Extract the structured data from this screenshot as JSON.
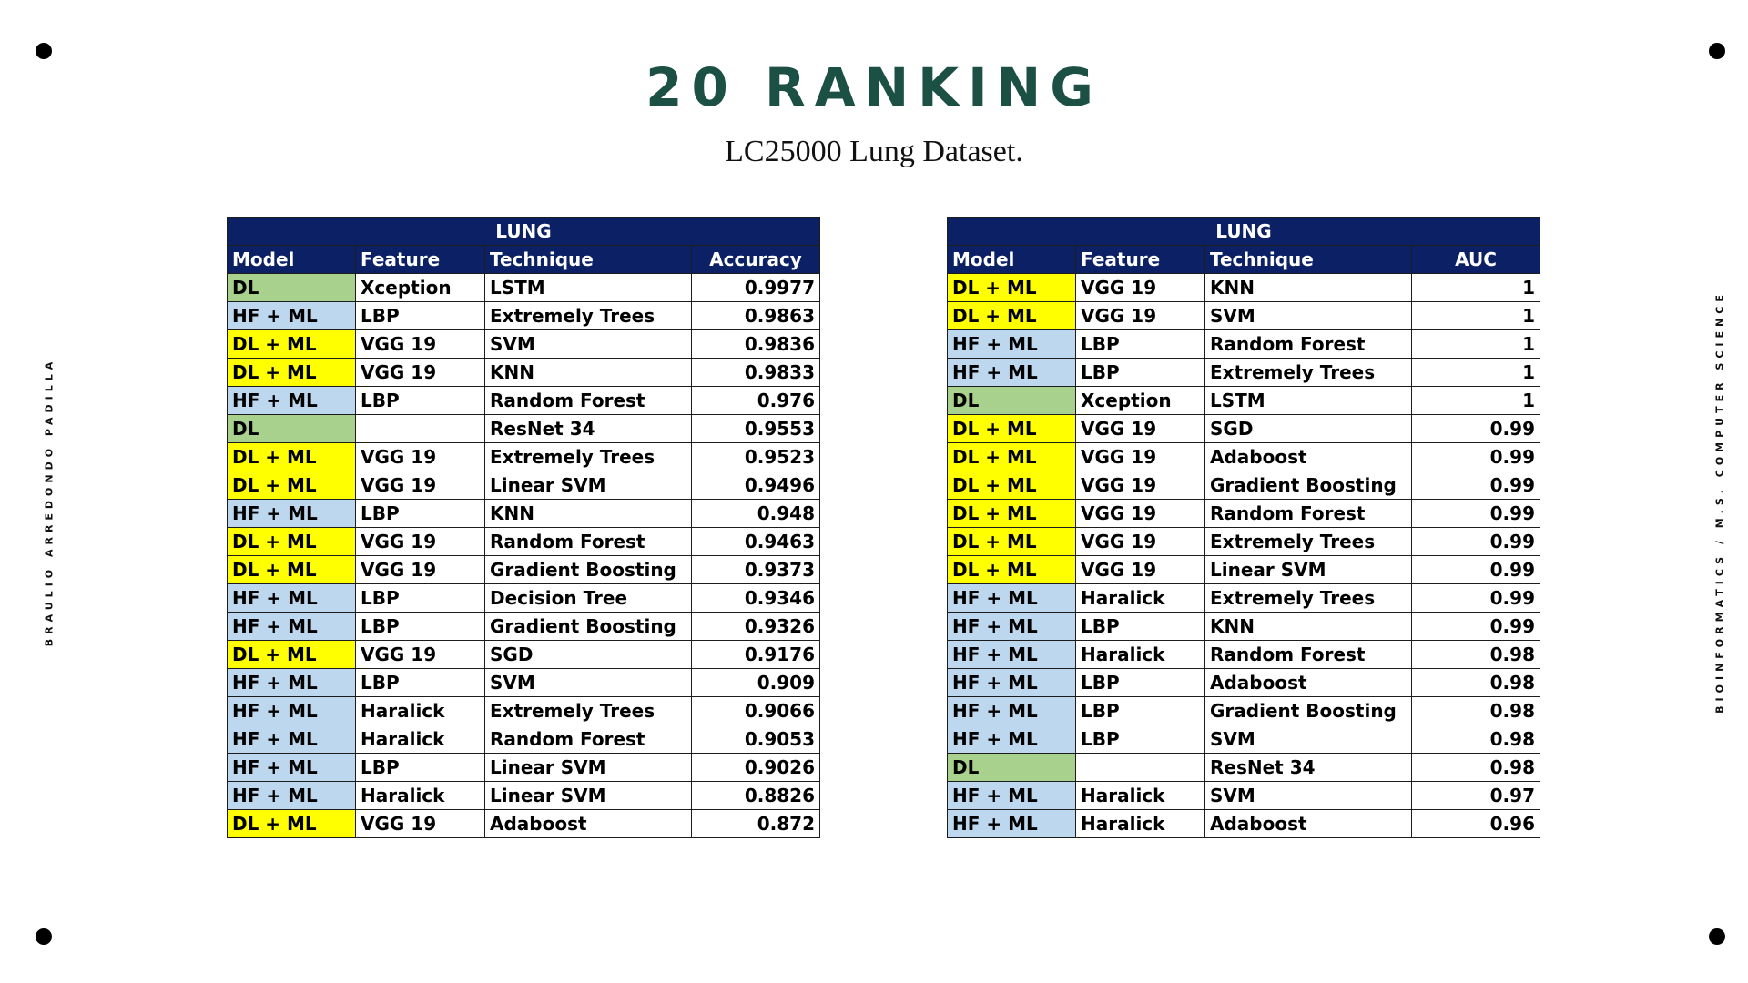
{
  "title": "20 RANKING",
  "subtitle": "LC25000 Lung Dataset.",
  "side_left": "BRAULIO ARREDONDO PADILLA",
  "side_right": "BIOINFORMATICS / M.S. COMPUTER SCIENCE",
  "colors": {
    "dl": "#a9d18e",
    "dl_ml": "#ffff00",
    "hf_ml": "#bdd7ee",
    "header": "#0c2066",
    "title": "#1d5045"
  },
  "tables": [
    {
      "group": "LUNG",
      "columns": [
        "Model",
        "Feature",
        "Technique",
        "Accuracy"
      ],
      "rows": [
        [
          "DL",
          "Xception",
          "LSTM",
          "0.9977"
        ],
        [
          "HF + ML",
          "LBP",
          "Extremely Trees",
          "0.9863"
        ],
        [
          "DL + ML",
          "VGG 19",
          "SVM",
          "0.9836"
        ],
        [
          "DL + ML",
          "VGG 19",
          "KNN",
          "0.9833"
        ],
        [
          "HF + ML",
          "LBP",
          "Random Forest",
          "0.976"
        ],
        [
          "DL",
          "",
          "ResNet 34",
          "0.9553"
        ],
        [
          "DL + ML",
          "VGG 19",
          "Extremely Trees",
          "0.9523"
        ],
        [
          "DL + ML",
          "VGG 19",
          "Linear SVM",
          "0.9496"
        ],
        [
          "HF + ML",
          "LBP",
          "KNN",
          "0.948"
        ],
        [
          "DL + ML",
          "VGG 19",
          "Random Forest",
          "0.9463"
        ],
        [
          "DL + ML",
          "VGG 19",
          "Gradient Boosting",
          "0.9373"
        ],
        [
          "HF + ML",
          "LBP",
          "Decision Tree",
          "0.9346"
        ],
        [
          "HF + ML",
          "LBP",
          "Gradient Boosting",
          "0.9326"
        ],
        [
          "DL + ML",
          "VGG 19",
          "SGD",
          "0.9176"
        ],
        [
          "HF + ML",
          "LBP",
          "SVM",
          "0.909"
        ],
        [
          "HF + ML",
          "Haralick",
          "Extremely Trees",
          "0.9066"
        ],
        [
          "HF + ML",
          "Haralick",
          "Random Forest",
          "0.9053"
        ],
        [
          "HF + ML",
          "LBP",
          "Linear SVM",
          "0.9026"
        ],
        [
          "HF + ML",
          "Haralick",
          "Linear SVM",
          "0.8826"
        ],
        [
          "DL + ML",
          "VGG 19",
          "Adaboost",
          "0.872"
        ]
      ]
    },
    {
      "group": "LUNG",
      "columns": [
        "Model",
        "Feature",
        "Technique",
        "AUC"
      ],
      "rows": [
        [
          "DL + ML",
          "VGG 19",
          "KNN",
          "1"
        ],
        [
          "DL + ML",
          "VGG 19",
          "SVM",
          "1"
        ],
        [
          "HF + ML",
          "LBP",
          "Random Forest",
          "1"
        ],
        [
          "HF + ML",
          "LBP",
          "Extremely Trees",
          "1"
        ],
        [
          "DL",
          "Xception",
          "LSTM",
          "1"
        ],
        [
          "DL + ML",
          "VGG 19",
          "SGD",
          "0.99"
        ],
        [
          "DL + ML",
          "VGG 19",
          "Adaboost",
          "0.99"
        ],
        [
          "DL + ML",
          "VGG 19",
          "Gradient Boosting",
          "0.99"
        ],
        [
          "DL + ML",
          "VGG 19",
          "Random Forest",
          "0.99"
        ],
        [
          "DL + ML",
          "VGG 19",
          "Extremely Trees",
          "0.99"
        ],
        [
          "DL + ML",
          "VGG 19",
          "Linear SVM",
          "0.99"
        ],
        [
          "HF + ML",
          "Haralick",
          "Extremely Trees",
          "0.99"
        ],
        [
          "HF + ML",
          "LBP",
          "KNN",
          "0.99"
        ],
        [
          "HF + ML",
          "Haralick",
          "Random Forest",
          "0.98"
        ],
        [
          "HF + ML",
          "LBP",
          "Adaboost",
          "0.98"
        ],
        [
          "HF + ML",
          "LBP",
          "Gradient Boosting",
          "0.98"
        ],
        [
          "HF + ML",
          "LBP",
          "SVM",
          "0.98"
        ],
        [
          "DL",
          "",
          "ResNet 34",
          "0.98"
        ],
        [
          "HF + ML",
          "Haralick",
          "SVM",
          "0.97"
        ],
        [
          "HF + ML",
          "Haralick",
          "Adaboost",
          "0.96"
        ]
      ]
    }
  ]
}
